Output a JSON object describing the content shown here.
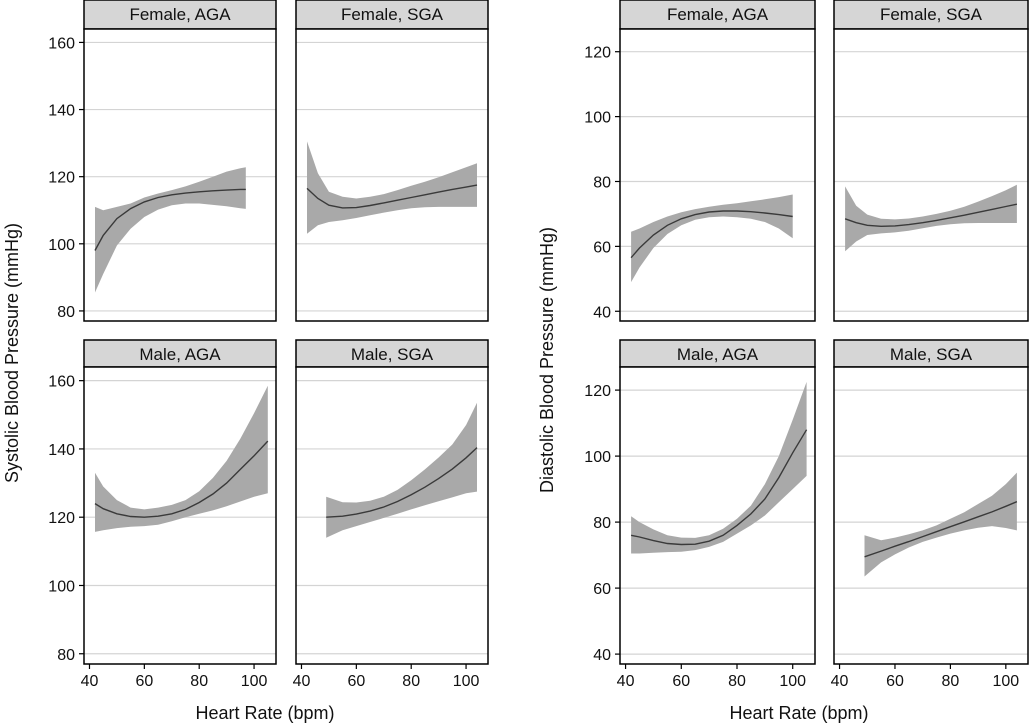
{
  "figure": {
    "left_title": "Systolic Blood Pressure (mmHg)",
    "right_title": "Diastolic Blood Pressure (mmHg)",
    "x_label": "Heart Rate (bpm)"
  },
  "chart_data": [
    {
      "type": "line",
      "measure": "Systolic",
      "ylabel": "Systolic Blood Pressure (mmHg)",
      "xlabel": "Heart Rate (bpm)",
      "xlim": [
        38,
        108
      ],
      "x_ticks": [
        40,
        60,
        80,
        100
      ],
      "panels": [
        {
          "title": "Female, AGA",
          "ylim": [
            77,
            164
          ],
          "y_ticks": [
            80,
            100,
            120,
            140,
            160
          ],
          "x": [
            42,
            45,
            50,
            55,
            60,
            65,
            70,
            75,
            80,
            85,
            90,
            95,
            97
          ],
          "fit": [
            98,
            102.5,
            107.5,
            110.5,
            112.5,
            113.8,
            114.6,
            115.1,
            115.5,
            115.8,
            116,
            116.2,
            116.2
          ],
          "lower": [
            85.5,
            91,
            99.5,
            104.5,
            108,
            110.2,
            111.5,
            112,
            112,
            111.6,
            111.2,
            110.6,
            110.4
          ],
          "upper": [
            111,
            110,
            111,
            112,
            113.8,
            115,
            116,
            117.1,
            118.5,
            120,
            121.5,
            122.5,
            122.8
          ]
        },
        {
          "title": "Female, SGA",
          "ylim": [
            77,
            164
          ],
          "y_ticks": [
            80,
            100,
            120,
            140,
            160
          ],
          "x": [
            42,
            46,
            50,
            55,
            60,
            65,
            70,
            75,
            80,
            85,
            90,
            95,
            100,
            104
          ],
          "fit": [
            116.5,
            113.5,
            111.5,
            110.7,
            110.8,
            111.4,
            112.2,
            113,
            113.8,
            114.6,
            115.4,
            116.2,
            116.9,
            117.5
          ],
          "lower": [
            103,
            105.5,
            106.5,
            107,
            107.7,
            108.5,
            109.3,
            110,
            110.6,
            110.9,
            111,
            111,
            111,
            111
          ],
          "upper": [
            130.5,
            121,
            115.5,
            114,
            113.5,
            114,
            114.8,
            116,
            117.3,
            118.5,
            119.8,
            121.3,
            122.8,
            124
          ]
        },
        {
          "title": "Male, AGA",
          "ylim": [
            77,
            164
          ],
          "y_ticks": [
            80,
            100,
            120,
            140,
            160
          ],
          "x": [
            42,
            45,
            50,
            55,
            60,
            65,
            70,
            75,
            80,
            85,
            90,
            95,
            100,
            105
          ],
          "fit": [
            124,
            122.5,
            121,
            120.2,
            120,
            120.3,
            121,
            122.3,
            124.3,
            126.8,
            130,
            134,
            138,
            142.3
          ],
          "lower": [
            115.7,
            116.2,
            116.8,
            117.2,
            117.4,
            117.8,
            118.8,
            120,
            121,
            122,
            123.2,
            124.6,
            126,
            127
          ],
          "upper": [
            133,
            129,
            125,
            122.8,
            122.3,
            122.8,
            123.6,
            125,
            127.6,
            131.5,
            136.5,
            143,
            150.5,
            158.5
          ]
        },
        {
          "title": "Male, SGA",
          "ylim": [
            77,
            164
          ],
          "y_ticks": [
            80,
            100,
            120,
            140,
            160
          ],
          "x": [
            49,
            55,
            60,
            65,
            70,
            75,
            80,
            85,
            90,
            95,
            100,
            104
          ],
          "fit": [
            120,
            120.3,
            120.9,
            121.8,
            123,
            124.6,
            126.6,
            128.8,
            131.3,
            134.1,
            137.4,
            140.4
          ],
          "lower": [
            114,
            116.2,
            117.4,
            118.6,
            119.8,
            121,
            122.3,
            123.5,
            124.7,
            125.8,
            127,
            127.5
          ],
          "upper": [
            126,
            124.4,
            124.3,
            124.8,
            126,
            128,
            130.8,
            134,
            137.5,
            141.3,
            147,
            153.5
          ]
        }
      ]
    },
    {
      "type": "line",
      "measure": "Diastolic",
      "ylabel": "Diastolic Blood Pressure (mmHg)",
      "xlabel": "Heart Rate (bpm)",
      "xlim": [
        38,
        108
      ],
      "x_ticks": [
        40,
        60,
        80,
        100
      ],
      "panels": [
        {
          "title": "Female, AGA",
          "ylim": [
            37,
            127
          ],
          "y_ticks": [
            40,
            60,
            80,
            100,
            120
          ],
          "x": [
            42,
            45,
            50,
            55,
            60,
            65,
            70,
            75,
            80,
            85,
            90,
            95,
            100
          ],
          "fit": [
            56.5,
            59.5,
            63.5,
            66.5,
            68.5,
            69.8,
            70.6,
            70.9,
            70.9,
            70.7,
            70.3,
            69.8,
            69.2
          ],
          "lower": [
            49,
            53.5,
            59.5,
            63.8,
            66.5,
            68.2,
            69,
            69.2,
            69,
            68.5,
            67.5,
            65.5,
            62.5
          ],
          "upper": [
            64.5,
            65.5,
            67.5,
            69.2,
            70.5,
            71.5,
            72.2,
            72.8,
            73.3,
            73.9,
            74.5,
            75.2,
            76
          ]
        },
        {
          "title": "Female, SGA",
          "ylim": [
            37,
            127
          ],
          "y_ticks": [
            40,
            60,
            80,
            100,
            120
          ],
          "x": [
            42,
            46,
            50,
            55,
            60,
            65,
            70,
            75,
            80,
            85,
            90,
            95,
            100,
            104
          ],
          "fit": [
            68.5,
            67.3,
            66.5,
            66.2,
            66.3,
            66.7,
            67.3,
            68,
            68.8,
            69.6,
            70.5,
            71.4,
            72.3,
            73
          ],
          "lower": [
            58.5,
            61.5,
            63.5,
            64,
            64.3,
            64.8,
            65.6,
            66.3,
            66.8,
            67.1,
            67.2,
            67.2,
            67.2,
            67.2
          ],
          "upper": [
            78.5,
            72.5,
            69.8,
            68.5,
            68.3,
            68.6,
            69.2,
            70,
            71,
            72.2,
            73.8,
            75.5,
            77.3,
            79
          ]
        },
        {
          "title": "Male, AGA",
          "ylim": [
            37,
            127
          ],
          "y_ticks": [
            40,
            60,
            80,
            100,
            120
          ],
          "x": [
            42,
            45,
            50,
            55,
            60,
            65,
            70,
            75,
            80,
            85,
            90,
            95,
            100,
            105
          ],
          "fit": [
            76,
            75.5,
            74.4,
            73.5,
            73.2,
            73.3,
            74.2,
            76,
            79,
            82.5,
            87,
            93.5,
            101,
            108
          ],
          "lower": [
            70.5,
            70.5,
            70.7,
            70.9,
            71,
            71.5,
            72.5,
            74,
            76.5,
            79,
            82,
            86,
            90,
            94
          ],
          "upper": [
            81.8,
            80,
            77.8,
            76,
            75.3,
            75.2,
            76,
            78,
            81,
            85,
            91.5,
            100,
            111,
            122.5
          ]
        },
        {
          "title": "Male, SGA",
          "ylim": [
            37,
            127
          ],
          "y_ticks": [
            40,
            60,
            80,
            100,
            120
          ],
          "x": [
            49,
            55,
            60,
            65,
            70,
            75,
            80,
            85,
            90,
            95,
            100,
            104
          ],
          "fit": [
            69.5,
            71.2,
            72.7,
            74.1,
            75.6,
            77.1,
            78.6,
            80.1,
            81.6,
            83.1,
            84.8,
            86.2
          ],
          "lower": [
            63.5,
            67.8,
            70.2,
            72.3,
            74,
            75.3,
            76.5,
            77.5,
            78.3,
            78.8,
            78.2,
            77.5
          ],
          "upper": [
            76,
            74.5,
            75.3,
            76.3,
            77.5,
            79,
            81,
            83,
            85.5,
            88,
            91.5,
            95
          ]
        }
      ]
    }
  ]
}
